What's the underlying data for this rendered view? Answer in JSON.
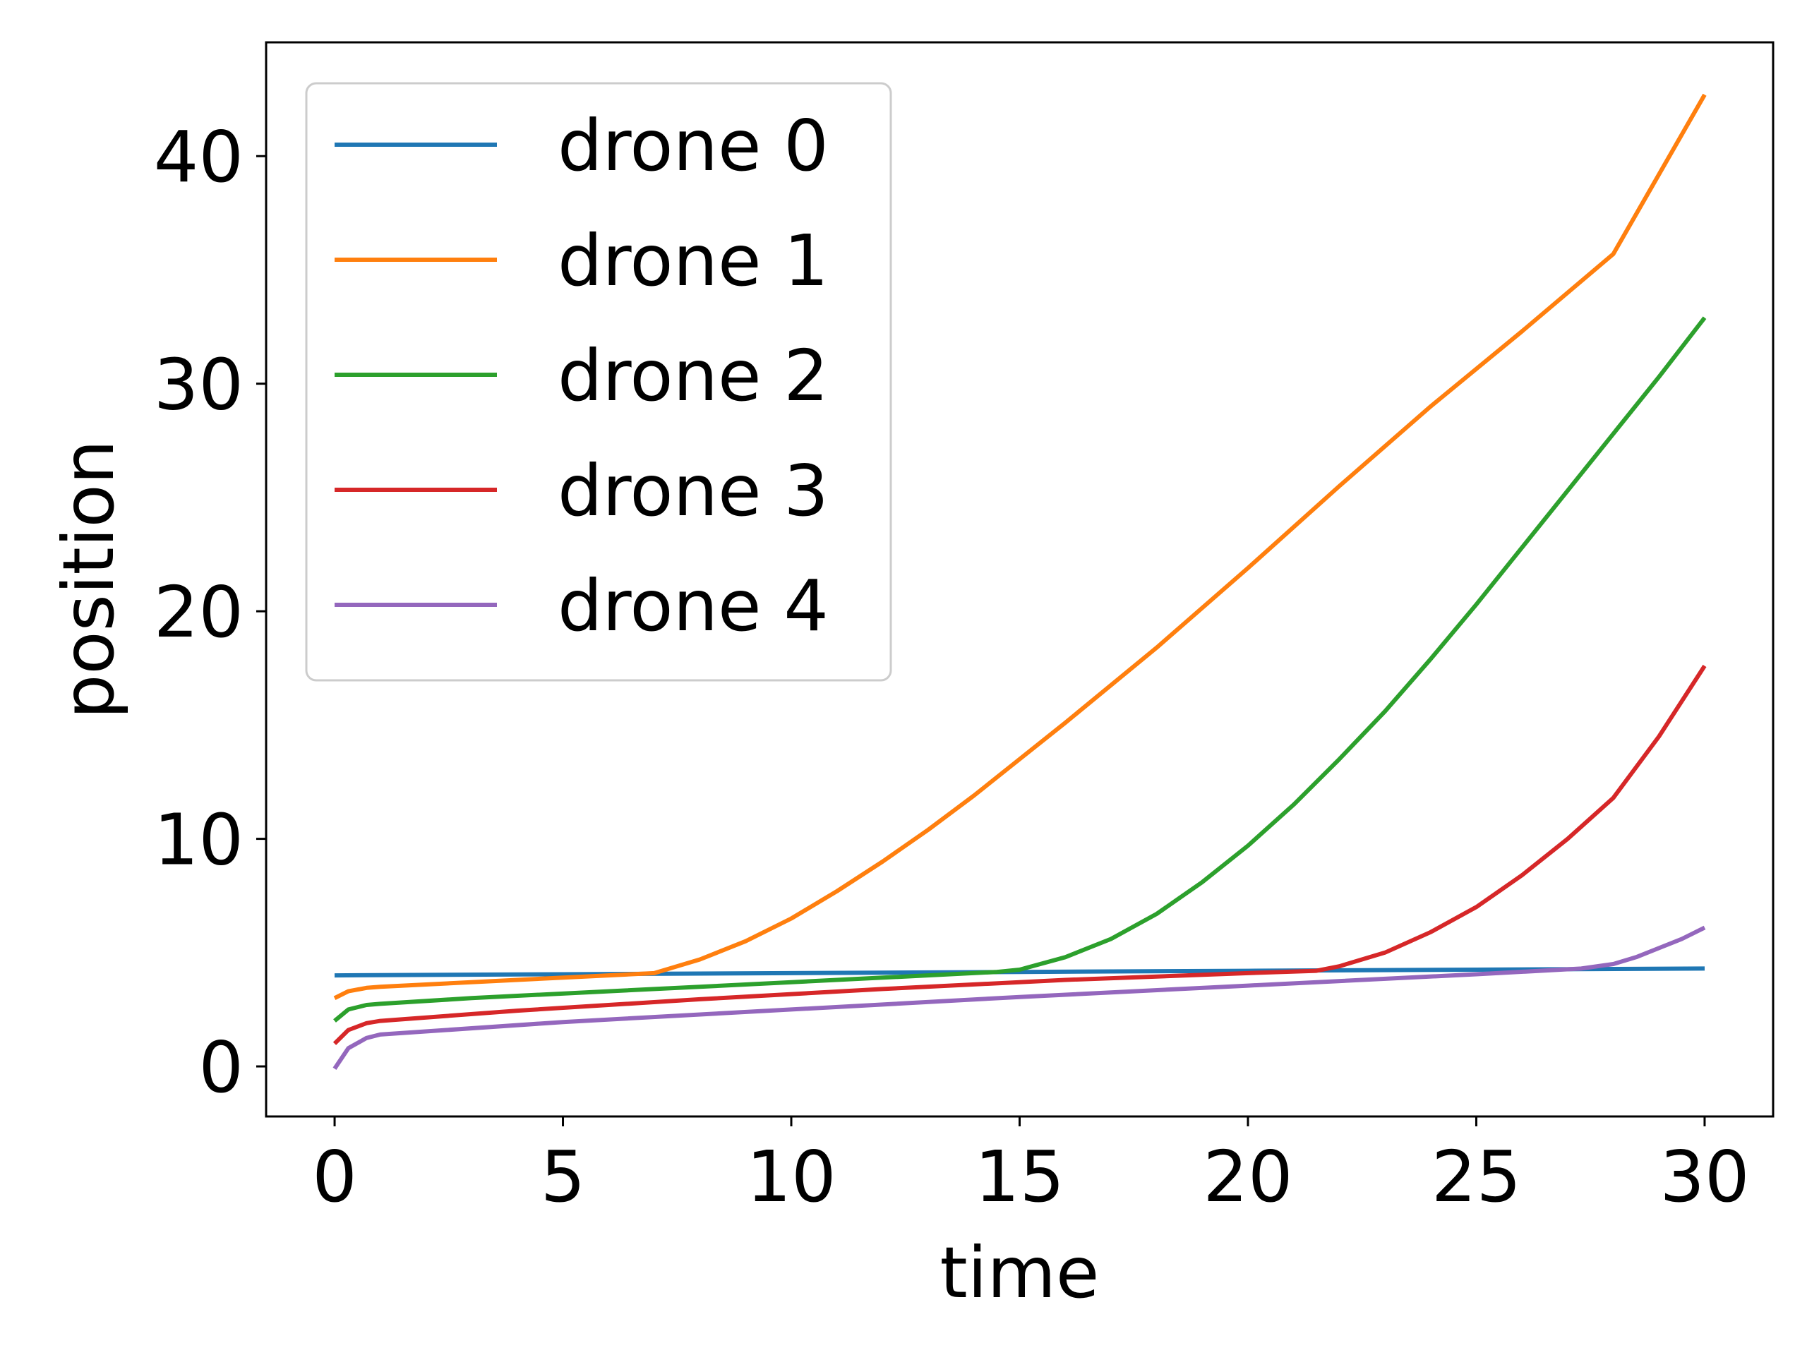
{
  "chart_data": {
    "type": "line",
    "title": "",
    "xlabel": "time",
    "ylabel": "position",
    "xlim": [
      -1.5,
      31.5
    ],
    "ylim": [
      -2.2,
      45
    ],
    "xticks": [
      0,
      5,
      10,
      15,
      20,
      25,
      30
    ],
    "yticks": [
      0,
      10,
      20,
      30,
      40
    ],
    "grid": false,
    "legend_position": "top-left",
    "series": [
      {
        "name": "drone 0",
        "color": "#1f77b4",
        "x": [
          0,
          5,
          10,
          15,
          20,
          25,
          30
        ],
        "y": [
          4.0,
          4.05,
          4.1,
          4.15,
          4.2,
          4.25,
          4.3
        ]
      },
      {
        "name": "drone 1",
        "color": "#ff7f0e",
        "x": [
          0,
          0.3,
          0.7,
          1.0,
          2,
          4,
          6,
          7,
          8,
          9,
          10,
          11,
          12,
          13,
          14,
          15,
          16,
          18,
          20,
          22,
          24,
          26,
          28,
          30
        ],
        "y": [
          3.0,
          3.3,
          3.45,
          3.5,
          3.6,
          3.8,
          4.0,
          4.1,
          4.7,
          5.5,
          6.5,
          7.7,
          9.0,
          10.4,
          11.9,
          13.5,
          15.1,
          18.4,
          21.9,
          25.5,
          29.0,
          32.3,
          35.7,
          42.7
        ]
      },
      {
        "name": "drone 2",
        "color": "#2ca02c",
        "x": [
          0,
          0.3,
          0.7,
          1.0,
          3,
          6,
          9,
          12,
          14.5,
          15,
          16,
          17,
          18,
          19,
          20,
          21,
          22,
          23,
          24,
          25,
          26,
          27,
          28,
          29,
          30
        ],
        "y": [
          2.0,
          2.5,
          2.7,
          2.75,
          3.0,
          3.3,
          3.6,
          3.9,
          4.15,
          4.25,
          4.8,
          5.6,
          6.7,
          8.1,
          9.7,
          11.5,
          13.5,
          15.6,
          17.9,
          20.3,
          22.8,
          25.3,
          27.8,
          30.3,
          32.9
        ]
      },
      {
        "name": "drone 3",
        "color": "#d62728",
        "x": [
          0,
          0.3,
          0.7,
          1.0,
          4,
          8,
          12,
          16,
          20,
          21.5,
          22,
          23,
          24,
          25,
          26,
          27,
          28,
          29,
          30
        ],
        "y": [
          1.0,
          1.6,
          1.9,
          2.0,
          2.45,
          2.95,
          3.4,
          3.8,
          4.1,
          4.2,
          4.4,
          5.0,
          5.9,
          7.0,
          8.4,
          10.0,
          11.8,
          14.5,
          17.6
        ]
      },
      {
        "name": "drone 4",
        "color": "#9467bd",
        "x": [
          0,
          0.3,
          0.7,
          1.0,
          5,
          10,
          15,
          20,
          25,
          27.3,
          28,
          28.5,
          29,
          29.5,
          30
        ],
        "y": [
          -0.1,
          0.8,
          1.25,
          1.4,
          1.95,
          2.5,
          3.05,
          3.55,
          4.05,
          4.3,
          4.5,
          4.8,
          5.2,
          5.6,
          6.1
        ]
      }
    ]
  }
}
